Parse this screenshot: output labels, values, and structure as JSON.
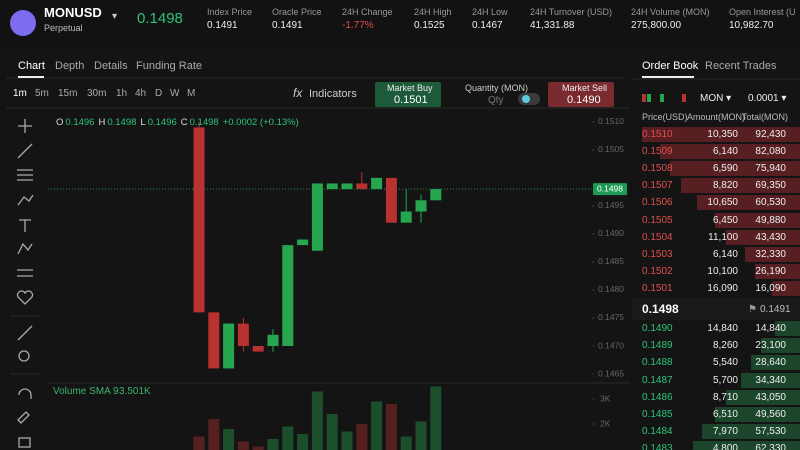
{
  "header": {
    "symbol": "MONUSD",
    "subtitle": "Perpetual",
    "price": "0.1498",
    "stats": [
      {
        "label": "Index Price",
        "value": "0.1491"
      },
      {
        "label": "Oracle Price",
        "value": "0.1491"
      },
      {
        "label": "24H Change",
        "value": "-1.77%"
      },
      {
        "label": "24H High",
        "value": "0.1525"
      },
      {
        "label": "24H Low",
        "value": "0.1467"
      },
      {
        "label": "24H Turnover (USD)",
        "value": "41,331.88"
      },
      {
        "label": "24H Volume (MON)",
        "value": "275,800.00"
      },
      {
        "label": "Open Interest (U",
        "value": "10,982.70"
      }
    ]
  },
  "chart_tabs": [
    "Chart",
    "Depth",
    "Details",
    "Funding Rate"
  ],
  "intervals": [
    "1m",
    "5m",
    "15m",
    "30m",
    "1h",
    "4h",
    "D",
    "W",
    "M"
  ],
  "toolbar": {
    "indicators": "Indicators",
    "market_buy": {
      "label": "Market Buy",
      "price": "0.1501"
    },
    "quantity": {
      "label": "Quantity (MON)",
      "placeholder": "Qty"
    },
    "market_sell": {
      "label": "Market Sell",
      "price": "0.1490"
    }
  },
  "legend": {
    "items": [
      {
        "key": "O",
        "value": "0.1496"
      },
      {
        "key": "H",
        "value": "0.1498"
      },
      {
        "key": "L",
        "value": "0.1496"
      },
      {
        "key": "C",
        "value": "0.1498"
      }
    ],
    "change": "+0.0002 (+0.13%)"
  },
  "chart_data": {
    "type": "candlestick",
    "categories": [
      null,
      null,
      null,
      null,
      null,
      null,
      null,
      null,
      null,
      null,
      null,
      null,
      null,
      null,
      null,
      null,
      null
    ],
    "open": [
      0.1509,
      0.1476,
      0.1466,
      0.1474,
      0.147,
      0.147,
      0.147,
      0.1488,
      0.1487,
      0.1498,
      0.1498,
      0.1499,
      0.1498,
      0.15,
      0.1492,
      0.1494,
      0.1496
    ],
    "high": [
      0.151,
      0.1476,
      0.1474,
      0.1475,
      0.147,
      0.1473,
      0.1488,
      0.1489,
      0.1499,
      0.1499,
      0.1499,
      0.1501,
      0.15,
      0.15,
      0.1498,
      0.1497,
      0.1498
    ],
    "low": [
      0.1476,
      0.1466,
      0.1466,
      0.1469,
      0.1469,
      0.1469,
      0.147,
      0.1488,
      0.1487,
      0.1498,
      0.1498,
      0.1498,
      0.1498,
      0.1492,
      0.1492,
      0.1492,
      0.1496
    ],
    "close": [
      0.1476,
      0.1466,
      0.1474,
      0.147,
      0.1469,
      0.1472,
      0.1488,
      0.1489,
      0.1499,
      0.1499,
      0.1499,
      0.1498,
      0.15,
      0.1492,
      0.1494,
      0.1496,
      0.1498
    ],
    "colors": {
      "up": "#26a74f",
      "down": "#b8322f"
    },
    "ylim": [
      0.14634,
      0.1513
    ],
    "yticks": [
      {
        "value": 0.151,
        "label": "0.1510"
      },
      0.1505,
      0.1495,
      {
        "value": 0.149,
        "label": "0.1490"
      },
      0.1485,
      {
        "value": 0.148,
        "label": "0.1480"
      },
      0.1475,
      {
        "value": 0.147,
        "label": "0.1470"
      },
      0.1465
    ],
    "last_price": 0.1498,
    "volume": {
      "title": "Volume SMA 9",
      "sma": "3.501K",
      "values": [
        1500,
        2200,
        1800,
        1300,
        1100,
        1400,
        1900,
        1600,
        3300,
        2400,
        1700,
        2000,
        2900,
        2800,
        1500,
        2100,
        3500
      ],
      "ylim": [
        960,
        3560
      ],
      "yticks": [
        {
          "value": 3000,
          "label": "3K"
        },
        {
          "value": 2000,
          "label": "2K"
        }
      ]
    }
  },
  "order_book": {
    "tabs": [
      "Order Book",
      "Recent Trades"
    ],
    "unit": "MON",
    "precision": "0.0001",
    "columns": [
      "Price(USD)",
      "Amount(MON)",
      "Total(MON)"
    ],
    "asks": [
      [
        "0.1510",
        "10,350",
        "92,430"
      ],
      [
        "0.1509",
        "6,140",
        "82,080"
      ],
      [
        "0.1508",
        "6,590",
        "75,940"
      ],
      [
        "0.1507",
        "8,820",
        "69,350"
      ],
      [
        "0.1506",
        "10,650",
        "60,530"
      ],
      [
        "0.1505",
        "6,450",
        "49,880"
      ],
      [
        "0.1504",
        "11,100",
        "43,430"
      ],
      [
        "0.1503",
        "6,140",
        "32,330"
      ],
      [
        "0.1502",
        "10,100",
        "26,190"
      ],
      [
        "0.1501",
        "16,090",
        "16,090"
      ]
    ],
    "mid_price": "0.1498",
    "mark_price": "0.1491",
    "bids": [
      [
        "0.1490",
        "14,840",
        "14,840"
      ],
      [
        "0.1489",
        "8,260",
        "23,100"
      ],
      [
        "0.1488",
        "5,540",
        "28,640"
      ],
      [
        "0.1487",
        "5,700",
        "34,340"
      ],
      [
        "0.1486",
        "8,710",
        "43,050"
      ],
      [
        "0.1485",
        "6,510",
        "49,560"
      ],
      [
        "0.1484",
        "7,970",
        "57,530"
      ],
      [
        "0.1483",
        "4,800",
        "62,330"
      ]
    ]
  }
}
